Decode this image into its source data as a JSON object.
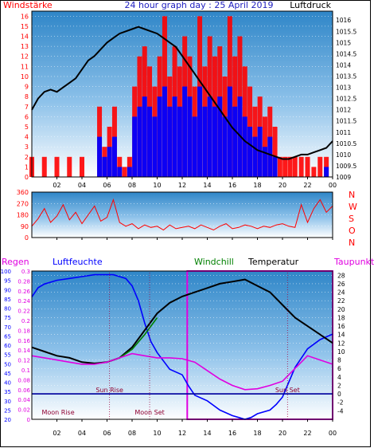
{
  "header": {
    "left_label": "Windstärke",
    "title": "24 hour graph day : 25 April 2019",
    "right_label": "Luftdruck"
  },
  "colors": {
    "red": "#ff0000",
    "blue": "#0000ff",
    "black": "#000000",
    "green": "#008000",
    "magenta": "#e000e0",
    "navy": "#0000a0",
    "sky_top": "#2f86c8",
    "sky_bottom": "#ffffff"
  },
  "chart_data": [
    {
      "type": "bar",
      "id": "wind",
      "x_ticks": [
        "02",
        "04",
        "06",
        "08",
        "10",
        "12",
        "14",
        "16",
        "18",
        "20",
        "22",
        "00"
      ],
      "xlim": [
        0,
        24
      ],
      "y_left_ticks": [
        "0",
        "1",
        "2",
        "3",
        "4",
        "5",
        "6",
        "7",
        "8",
        "9",
        "10",
        "11",
        "12",
        "13",
        "14",
        "15",
        "16"
      ],
      "ylim_left": [
        0,
        16.5
      ],
      "y_right_ticks": [
        "1009",
        "1009.5",
        "1010",
        "1010.5",
        "1011",
        "1011.5",
        "1012",
        "1012.5",
        "1013",
        "1013.5",
        "1014",
        "1014.5",
        "1015",
        "1015.5",
        "1016"
      ],
      "ylim_right": [
        1009,
        1016.4
      ],
      "series": [
        {
          "name": "Windstärke",
          "note": "gust",
          "color": "red",
          "x": [
            0,
            1,
            2,
            3,
            4,
            5,
            5.4,
            5.8,
            6.2,
            6.6,
            7,
            7.4,
            7.8,
            8.2,
            8.6,
            9,
            9.4,
            9.8,
            10.2,
            10.6,
            11,
            11.4,
            11.8,
            12.2,
            12.6,
            13,
            13.4,
            13.8,
            14.2,
            14.6,
            15,
            15.4,
            15.8,
            16.2,
            16.6,
            17,
            17.4,
            17.8,
            18.2,
            18.6,
            19,
            19.4,
            19.8,
            20.2,
            20.6,
            21,
            21.5,
            22,
            22.5,
            23,
            23.5
          ],
          "values": [
            2,
            2,
            2,
            2,
            2,
            0,
            7,
            3,
            5,
            7,
            2,
            1,
            2,
            9,
            12,
            13,
            11,
            9,
            12,
            16,
            10,
            13,
            11,
            14,
            12,
            9,
            16,
            11,
            14,
            12,
            13,
            10,
            16,
            12,
            14,
            11,
            9,
            7,
            8,
            6,
            7,
            5,
            2,
            2,
            2,
            2,
            2,
            2,
            1,
            2,
            2
          ]
        },
        {
          "name": "Windstärke",
          "note": "mean",
          "color": "blue",
          "x": [
            0,
            1,
            2,
            3,
            4,
            5,
            5.4,
            5.8,
            6.2,
            6.6,
            7,
            7.4,
            7.8,
            8.2,
            8.6,
            9,
            9.4,
            9.8,
            10.2,
            10.6,
            11,
            11.4,
            11.8,
            12.2,
            12.6,
            13,
            13.4,
            13.8,
            14.2,
            14.6,
            15,
            15.4,
            15.8,
            16.2,
            16.6,
            17,
            17.4,
            17.8,
            18.2,
            18.6,
            19,
            19.4,
            19.8,
            20.2,
            20.6,
            21,
            21.5,
            22,
            22.5,
            23,
            23.5
          ],
          "values": [
            0,
            0,
            0,
            0,
            0,
            0,
            4,
            2,
            3,
            4,
            1,
            0,
            1,
            6,
            7,
            8,
            7,
            6,
            8,
            9,
            7,
            8,
            7,
            9,
            8,
            6,
            9,
            7,
            8,
            7,
            8,
            6,
            9,
            7,
            8,
            6,
            5,
            4,
            5,
            3,
            4,
            2,
            0,
            0,
            0,
            0,
            0,
            0,
            0,
            0,
            1
          ]
        },
        {
          "name": "Luftdruck",
          "color": "black",
          "x": [
            0,
            0.5,
            1,
            1.5,
            2,
            2.5,
            3,
            3.5,
            4,
            4.5,
            5,
            5.5,
            6,
            6.5,
            7,
            7.5,
            8,
            8.5,
            9,
            9.5,
            10,
            10.5,
            11,
            11.5,
            12,
            12.5,
            13,
            13.5,
            14,
            14.5,
            15,
            15.5,
            16,
            16.5,
            17,
            17.5,
            18,
            18.5,
            19,
            19.5,
            20,
            20.5,
            21,
            21.5,
            22,
            22.5,
            23,
            23.5,
            24
          ],
          "values": [
            1012,
            1012.5,
            1012.8,
            1012.9,
            1012.8,
            1013,
            1013.2,
            1013.4,
            1013.8,
            1014.2,
            1014.4,
            1014.7,
            1015,
            1015.2,
            1015.4,
            1015.5,
            1015.6,
            1015.7,
            1015.6,
            1015.5,
            1015.4,
            1015.2,
            1015,
            1014.8,
            1014.4,
            1014,
            1013.6,
            1013.2,
            1012.8,
            1012.4,
            1012,
            1011.6,
            1011.2,
            1010.9,
            1010.6,
            1010.4,
            1010.2,
            1010.1,
            1010,
            1009.9,
            1009.8,
            1009.8,
            1009.9,
            1010,
            1010,
            1010.1,
            1010.2,
            1010.3,
            1010.6
          ]
        }
      ]
    },
    {
      "type": "line",
      "id": "direction",
      "x_ticks": [
        "02",
        "04",
        "06",
        "08",
        "10",
        "12",
        "14",
        "16",
        "18",
        "20",
        "22",
        "00"
      ],
      "xlim": [
        0,
        24
      ],
      "y_ticks": [
        "0",
        "90",
        "180",
        "270",
        "360"
      ],
      "ylim": [
        0,
        360
      ],
      "compass_labels": [
        "N",
        "W",
        "S",
        "O",
        "N"
      ],
      "series": [
        {
          "name": "Windrichtung",
          "color": "red",
          "x": [
            0,
            0.5,
            1,
            1.5,
            2,
            2.5,
            3,
            3.5,
            4,
            4.5,
            5,
            5.5,
            6,
            6.5,
            7,
            7.5,
            8,
            8.5,
            9,
            9.5,
            10,
            10.5,
            11,
            11.5,
            12,
            12.5,
            13,
            13.5,
            14,
            14.5,
            15,
            15.5,
            16,
            16.5,
            17,
            17.5,
            18,
            18.5,
            19,
            19.5,
            20,
            20.5,
            21,
            21.5,
            22,
            22.5,
            23,
            23.5,
            24
          ],
          "values": [
            90,
            150,
            230,
            120,
            170,
            260,
            140,
            200,
            110,
            180,
            250,
            130,
            160,
            300,
            120,
            90,
            110,
            70,
            100,
            80,
            90,
            60,
            100,
            70,
            80,
            90,
            70,
            100,
            80,
            60,
            90,
            110,
            70,
            80,
            100,
            90,
            70,
            90,
            80,
            100,
            110,
            90,
            80,
            260,
            120,
            230,
            300,
            200,
            250
          ]
        }
      ]
    },
    {
      "type": "line",
      "id": "climate",
      "header_labels": {
        "regen": "Regen",
        "luftfeuchte": "Luftfeuchte",
        "windchill": "Windchill",
        "temperatur": "Temperatur",
        "taupunkt": "Taupunkt"
      },
      "x_ticks": [
        "02",
        "04",
        "06",
        "08",
        "10",
        "12",
        "14",
        "16",
        "18",
        "20",
        "22",
        "00"
      ],
      "xlim": [
        0,
        24
      ],
      "y_regen_ticks": [
        "0",
        "0.02",
        "0.04",
        "0.06",
        "0.08",
        "0.1",
        "0.12",
        "0.14",
        "0.16",
        "0.18",
        "0.2",
        "0.22",
        "0.24",
        "0.26",
        "0.28",
        "0.3"
      ],
      "y_humidity_ticks": [
        "20",
        "25",
        "30",
        "35",
        "40",
        "45",
        "50",
        "55",
        "60",
        "65",
        "70",
        "75",
        "80",
        "85",
        "90",
        "95",
        "100"
      ],
      "y_temp_ticks": [
        "-4",
        "-2",
        "0",
        "2",
        "4",
        "6",
        "8",
        "10",
        "12",
        "14",
        "16",
        "18",
        "20",
        "22",
        "24",
        "26",
        "28"
      ],
      "ylim_temp": [
        -6,
        29
      ],
      "ylim_humidity": [
        20,
        100
      ],
      "annotations": [
        {
          "text": "Sun Rise",
          "x": 6.2
        },
        {
          "text": "Sun Set",
          "x": 20.4
        },
        {
          "text": "Moon Rise",
          "x": 2.1
        },
        {
          "text": "Moon Set",
          "x": 9.4
        }
      ],
      "highlight_span": [
        12.4,
        24
      ],
      "series": [
        {
          "name": "Luftfeuchte",
          "color": "blue",
          "x": [
            0,
            0.5,
            1,
            2,
            3,
            4,
            5,
            6,
            6.5,
            7,
            7.5,
            8,
            8.5,
            9,
            9.5,
            10,
            11,
            12,
            12.5,
            13,
            14,
            15,
            16,
            16.5,
            17,
            17.5,
            18,
            19,
            19.5,
            20,
            20.5,
            21,
            22,
            23,
            24
          ],
          "values": [
            86,
            91,
            93,
            95,
            96,
            97,
            98,
            98,
            98,
            97,
            96,
            92,
            84,
            72,
            62,
            56,
            47,
            44,
            38,
            33,
            30,
            25,
            22,
            21,
            20,
            21,
            23,
            25,
            28,
            32,
            40,
            48,
            58,
            63,
            66
          ]
        },
        {
          "name": "Temperatur",
          "color": "black",
          "x": [
            0,
            1,
            2,
            3,
            4,
            5,
            6,
            7,
            8,
            9,
            10,
            11,
            12,
            13,
            14,
            15,
            16,
            17,
            18,
            19,
            20,
            21,
            22,
            23,
            24
          ],
          "values": [
            11,
            10,
            9,
            8.5,
            7.5,
            7.2,
            7.5,
            8.5,
            11,
            15,
            19,
            21.5,
            23,
            24,
            25,
            26,
            26.5,
            27,
            25.5,
            24,
            21,
            18,
            16,
            14,
            12
          ]
        },
        {
          "name": "Windchill",
          "color": "green",
          "x": [
            6,
            7,
            8,
            9,
            10
          ],
          "values": [
            7.5,
            8.5,
            10.5,
            14,
            18
          ]
        },
        {
          "name": "Taupunkt",
          "color": "magenta",
          "x": [
            0,
            1,
            2,
            3,
            4,
            5,
            6,
            7,
            8,
            9,
            10,
            11,
            12,
            13,
            14,
            15,
            16,
            17,
            18,
            19,
            20,
            21,
            22,
            23,
            24
          ],
          "values": [
            9,
            8.5,
            8,
            7.5,
            7,
            7,
            7.5,
            8.5,
            9.5,
            9,
            8.5,
            8.5,
            8.3,
            7.5,
            5.5,
            3.5,
            2,
            1,
            1.2,
            2,
            3,
            6,
            9,
            8,
            7
          ]
        },
        {
          "name": "Regen",
          "color": "navy",
          "x": [
            0,
            24
          ],
          "values": [
            0,
            0
          ]
        }
      ]
    }
  ]
}
